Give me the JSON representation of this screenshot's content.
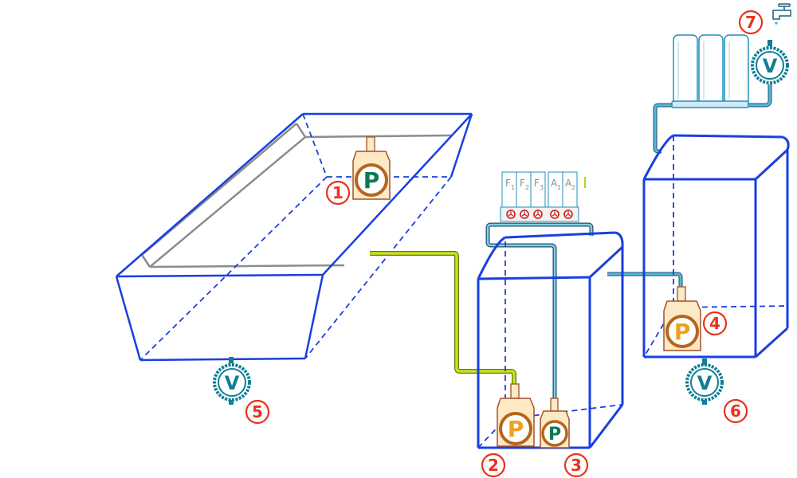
{
  "colors": {
    "tank_edge": "#1a3fe0",
    "basin_inner": "#8c8c8c",
    "pipe_yellow": "#b7d31c",
    "pipe_blue": "#2a9ec7",
    "pipe_dark": "#1e4f6a",
    "pump_body": "#fde9c4",
    "pump_outline": "#a0522d",
    "pump_ring": "#b5651d",
    "pump_letter_green": "#0e7a55",
    "pump_letter_orange": "#f0a020",
    "label_red": "#e8321e",
    "valve_teal": "#0e7f96",
    "filter_stroke": "#1f8fbf"
  },
  "pumps": [
    {
      "id": "pump-1",
      "letter": "P",
      "letter_color": "green"
    },
    {
      "id": "pump-2",
      "letter": "P",
      "letter_color": "orange"
    },
    {
      "id": "pump-3",
      "letter": "P",
      "letter_color": "green"
    },
    {
      "id": "pump-4",
      "letter": "P",
      "letter_color": "orange"
    }
  ],
  "valves": [
    {
      "id": "valve-5",
      "letter": "V"
    },
    {
      "id": "valve-6",
      "letter": "V"
    },
    {
      "id": "valve-7",
      "letter": "V"
    }
  ],
  "labels": [
    "1",
    "2",
    "3",
    "4",
    "5",
    "6",
    "7"
  ],
  "dosing_unit": {
    "channels": [
      {
        "letter": "F",
        "sub": "1"
      },
      {
        "letter": "F",
        "sub": "2"
      },
      {
        "letter": "F",
        "sub": "3"
      },
      {
        "letter": "A",
        "sub": "1"
      },
      {
        "letter": "A",
        "sub": "2"
      }
    ]
  },
  "icons": {
    "tap": "faucet-icon",
    "valve": "valve-icon",
    "pump": "pump-icon",
    "dosing_valve": "red-valve-icon"
  }
}
